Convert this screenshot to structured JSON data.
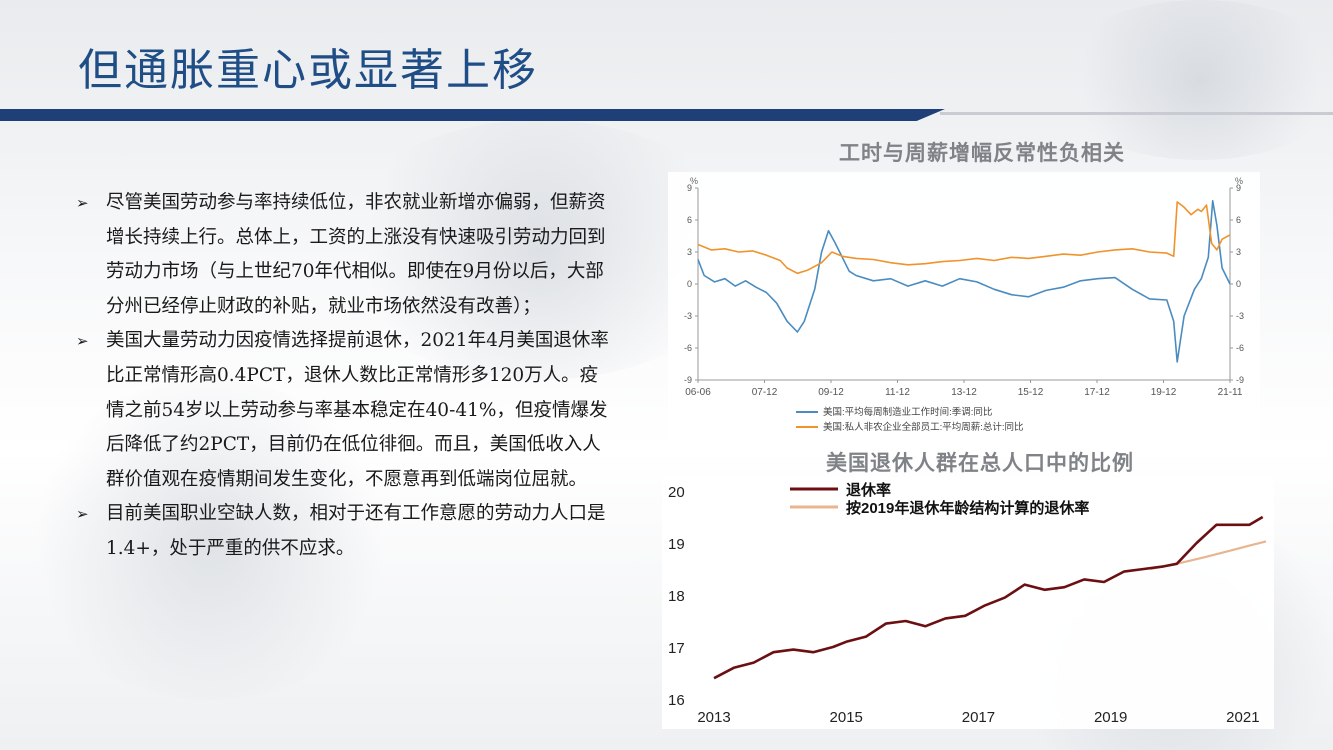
{
  "title": "但通胀重心或显著上移",
  "bullets": [
    "尽管美国劳动参与率持续低位，非农就业新增亦偏弱，但薪资增长持续上行。总体上，工资的上涨没有快速吸引劳动力回到劳动力市场（与上世纪70年代相似。即使在9月份以后，大部分州已经停止财政的补贴，就业市场依然没有改善）；",
    "美国大量劳动力因疫情选择提前退休，2021年4月美国退休率比正常情形高0.4PCT，退休人数比正常情形多120万人。疫情之前54岁以上劳动参与率基本稳定在40-41%，但疫情爆发后降低了约2PCT，目前仍在低位徘徊。而且，美国低收入人群价值观在疫情期间发生变化，不愿意再到低端岗位屈就。",
    "目前美国职业空缺人数，相对于还有工作意愿的劳动力人口是1.4+，处于严重的供不应求。"
  ],
  "chart_data": [
    {
      "type": "line",
      "title": "工时与周薪增幅反常性负相关",
      "y_unit_left": "%",
      "y_unit_right": "%",
      "ylim": [
        -9,
        9
      ],
      "y_ticks": [
        -9,
        -6,
        -3,
        0,
        3,
        6,
        9
      ],
      "x_ticks": [
        "06-06",
        "07-12",
        "09-12",
        "11-12",
        "13-12",
        "15-12",
        "17-12",
        "19-12",
        "21-11"
      ],
      "x_range": [
        2006.42,
        2021.83
      ],
      "series": [
        {
          "name": "美国:平均每周制造业工作时间:季调:同比",
          "color": "#4a8cc0",
          "points": [
            [
              2006.42,
              2.3
            ],
            [
              2006.6,
              0.8
            ],
            [
              2006.9,
              0.2
            ],
            [
              2007.2,
              0.5
            ],
            [
              2007.5,
              -0.2
            ],
            [
              2007.8,
              0.3
            ],
            [
              2008.1,
              -0.3
            ],
            [
              2008.4,
              -0.8
            ],
            [
              2008.7,
              -1.8
            ],
            [
              2009.0,
              -3.5
            ],
            [
              2009.3,
              -4.5
            ],
            [
              2009.5,
              -3.5
            ],
            [
              2009.8,
              -0.5
            ],
            [
              2010.0,
              3.0
            ],
            [
              2010.2,
              5.0
            ],
            [
              2010.4,
              3.8
            ],
            [
              2010.6,
              2.5
            ],
            [
              2010.8,
              1.2
            ],
            [
              2011.0,
              0.8
            ],
            [
              2011.5,
              0.3
            ],
            [
              2012.0,
              0.5
            ],
            [
              2012.5,
              -0.2
            ],
            [
              2013.0,
              0.3
            ],
            [
              2013.5,
              -0.2
            ],
            [
              2014.0,
              0.5
            ],
            [
              2014.5,
              0.2
            ],
            [
              2015.0,
              -0.5
            ],
            [
              2015.5,
              -1.0
            ],
            [
              2016.0,
              -1.2
            ],
            [
              2016.5,
              -0.6
            ],
            [
              2017.0,
              -0.3
            ],
            [
              2017.5,
              0.3
            ],
            [
              2018.0,
              0.5
            ],
            [
              2018.5,
              0.6
            ],
            [
              2019.0,
              -0.5
            ],
            [
              2019.5,
              -1.4
            ],
            [
              2020.0,
              -1.5
            ],
            [
              2020.2,
              -3.5
            ],
            [
              2020.3,
              -7.3
            ],
            [
              2020.5,
              -3.0
            ],
            [
              2020.8,
              -0.5
            ],
            [
              2021.0,
              0.5
            ],
            [
              2021.2,
              2.5
            ],
            [
              2021.33,
              7.8
            ],
            [
              2021.45,
              5.5
            ],
            [
              2021.6,
              1.5
            ],
            [
              2021.83,
              0.0
            ]
          ]
        },
        {
          "name": "美国:私人非农企业全部员工:平均周薪:总计:同比",
          "color": "#f0932b",
          "points": [
            [
              2006.42,
              3.7
            ],
            [
              2006.8,
              3.2
            ],
            [
              2007.2,
              3.3
            ],
            [
              2007.6,
              3.0
            ],
            [
              2008.0,
              3.1
            ],
            [
              2008.4,
              2.7
            ],
            [
              2008.8,
              2.2
            ],
            [
              2009.0,
              1.5
            ],
            [
              2009.3,
              1.0
            ],
            [
              2009.6,
              1.3
            ],
            [
              2010.0,
              2.0
            ],
            [
              2010.3,
              3.0
            ],
            [
              2010.6,
              2.6
            ],
            [
              2011.0,
              2.4
            ],
            [
              2011.5,
              2.3
            ],
            [
              2012.0,
              2.0
            ],
            [
              2012.5,
              1.8
            ],
            [
              2013.0,
              1.9
            ],
            [
              2013.5,
              2.1
            ],
            [
              2014.0,
              2.2
            ],
            [
              2014.5,
              2.4
            ],
            [
              2015.0,
              2.2
            ],
            [
              2015.5,
              2.5
            ],
            [
              2016.0,
              2.4
            ],
            [
              2016.5,
              2.6
            ],
            [
              2017.0,
              2.8
            ],
            [
              2017.5,
              2.7
            ],
            [
              2018.0,
              3.0
            ],
            [
              2018.5,
              3.2
            ],
            [
              2019.0,
              3.3
            ],
            [
              2019.5,
              3.0
            ],
            [
              2020.0,
              2.9
            ],
            [
              2020.2,
              2.6
            ],
            [
              2020.3,
              7.7
            ],
            [
              2020.5,
              7.2
            ],
            [
              2020.7,
              6.5
            ],
            [
              2020.9,
              7.0
            ],
            [
              2021.0,
              6.8
            ],
            [
              2021.15,
              7.4
            ],
            [
              2021.3,
              3.8
            ],
            [
              2021.45,
              3.2
            ],
            [
              2021.6,
              4.2
            ],
            [
              2021.83,
              4.6
            ]
          ]
        }
      ],
      "legend_position": "bottom-left",
      "grid": false
    },
    {
      "type": "line",
      "title": "美国退休人群在总人口中的比例",
      "ylim": [
        16,
        20
      ],
      "y_ticks": [
        16,
        17,
        18,
        19,
        20
      ],
      "x_ticks": [
        2013,
        2015,
        2017,
        2019,
        2021
      ],
      "x_range": [
        2013.0,
        2021.35
      ],
      "series": [
        {
          "name": "退休率",
          "color": "#6b0f13",
          "points": [
            [
              2013.0,
              16.4
            ],
            [
              2013.3,
              16.6
            ],
            [
              2013.6,
              16.7
            ],
            [
              2013.9,
              16.9
            ],
            [
              2014.2,
              16.95
            ],
            [
              2014.5,
              16.9
            ],
            [
              2014.8,
              17.0
            ],
            [
              2015.0,
              17.1
            ],
            [
              2015.3,
              17.2
            ],
            [
              2015.6,
              17.45
            ],
            [
              2015.9,
              17.5
            ],
            [
              2016.2,
              17.4
            ],
            [
              2016.5,
              17.55
            ],
            [
              2016.8,
              17.6
            ],
            [
              2017.1,
              17.8
            ],
            [
              2017.4,
              17.95
            ],
            [
              2017.7,
              18.2
            ],
            [
              2018.0,
              18.1
            ],
            [
              2018.3,
              18.15
            ],
            [
              2018.6,
              18.3
            ],
            [
              2018.9,
              18.25
            ],
            [
              2019.2,
              18.45
            ],
            [
              2019.5,
              18.5
            ],
            [
              2019.8,
              18.55
            ],
            [
              2020.0,
              18.6
            ],
            [
              2020.3,
              19.0
            ],
            [
              2020.6,
              19.35
            ],
            [
              2020.9,
              19.35
            ],
            [
              2021.1,
              19.35
            ],
            [
              2021.3,
              19.5
            ]
          ]
        },
        {
          "name": "按2019年退休年龄结构计算的退休率",
          "color": "#e8b58e",
          "points": [
            [
              2019.6,
              18.5
            ],
            [
              2020.0,
              18.6
            ],
            [
              2020.4,
              18.72
            ],
            [
              2020.8,
              18.85
            ],
            [
              2021.1,
              18.95
            ],
            [
              2021.35,
              19.03
            ]
          ]
        }
      ],
      "legend_position": "top-left",
      "grid": false
    }
  ]
}
